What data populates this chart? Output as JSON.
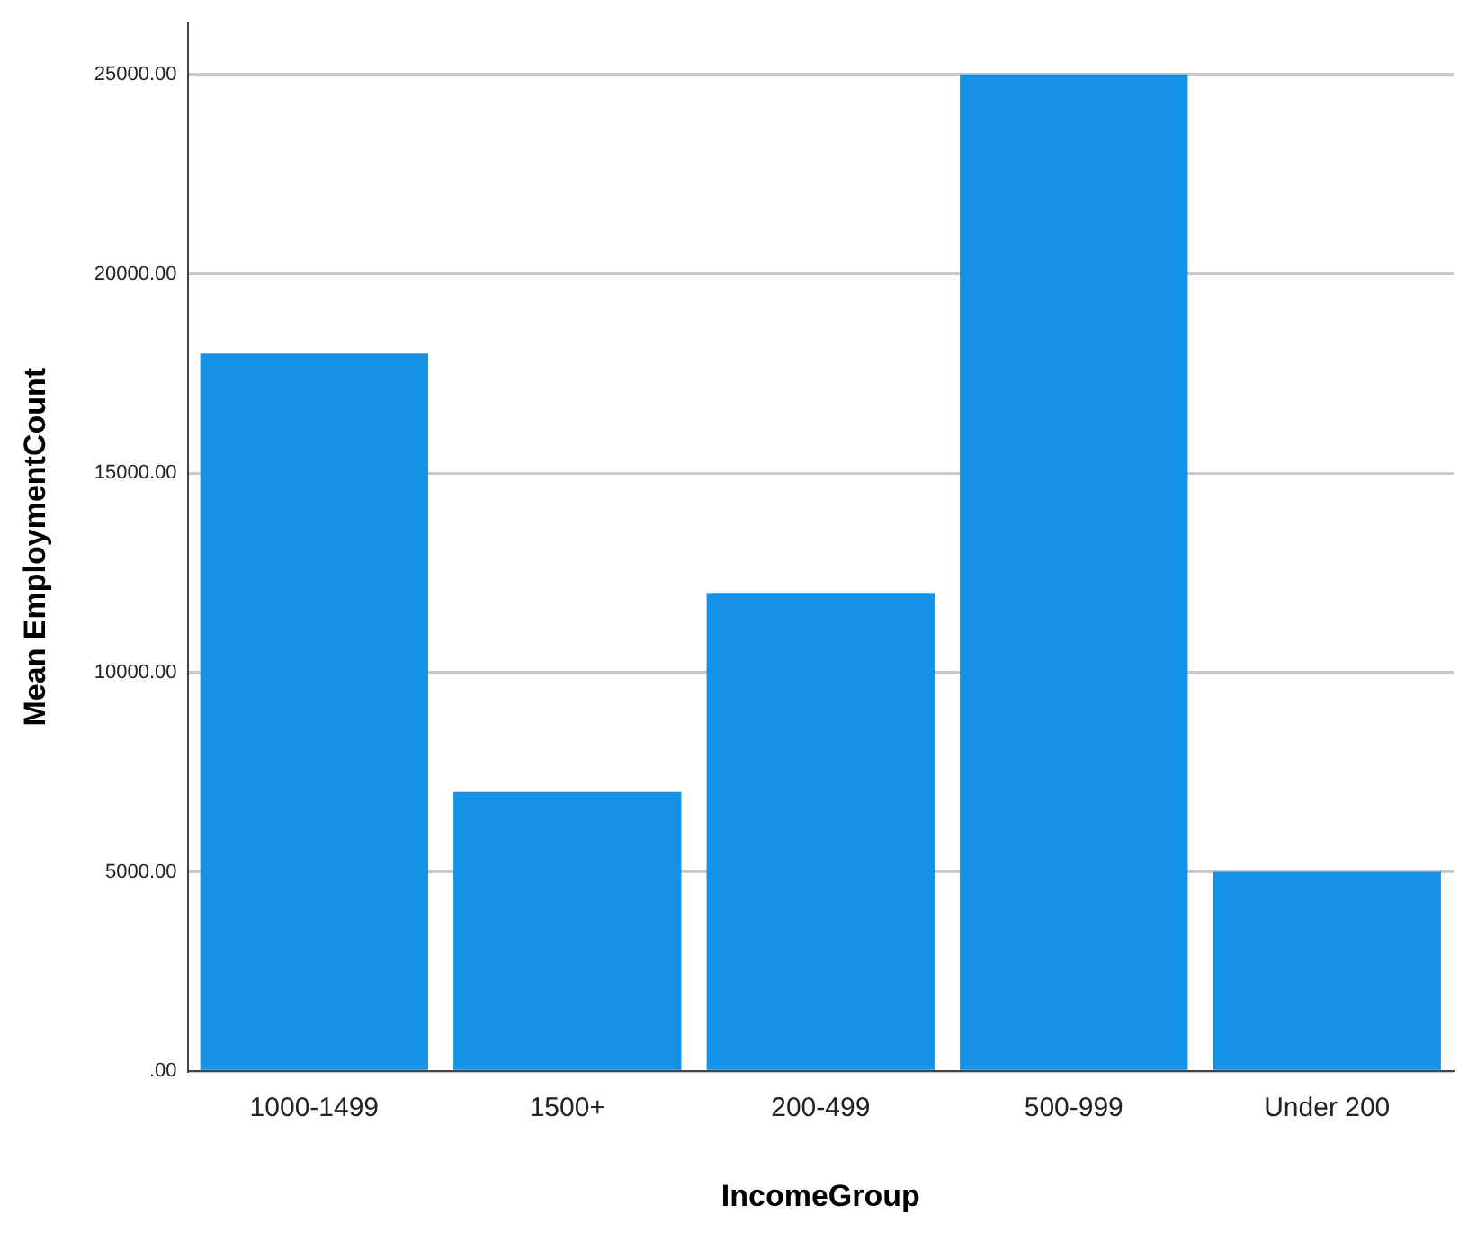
{
  "chart_data": {
    "type": "bar",
    "xlabel": "IncomeGroup",
    "ylabel": "Mean EmploymentCount",
    "categories": [
      "1000-1499",
      "1500+",
      "200-499",
      "500-999",
      "Under 200"
    ],
    "values": [
      18000,
      7000,
      12000,
      25000,
      5000
    ],
    "color": "#1591e8",
    "ylim": [
      0,
      26300
    ],
    "yticks": [
      {
        "value": 0,
        "label": ".00"
      },
      {
        "value": 5000,
        "label": "5000.00"
      },
      {
        "value": 10000,
        "label": "10000.00"
      },
      {
        "value": 15000,
        "label": "15000.00"
      },
      {
        "value": 20000,
        "label": "20000.00"
      },
      {
        "value": 25000,
        "label": "25000.00"
      }
    ],
    "grid": "y"
  }
}
